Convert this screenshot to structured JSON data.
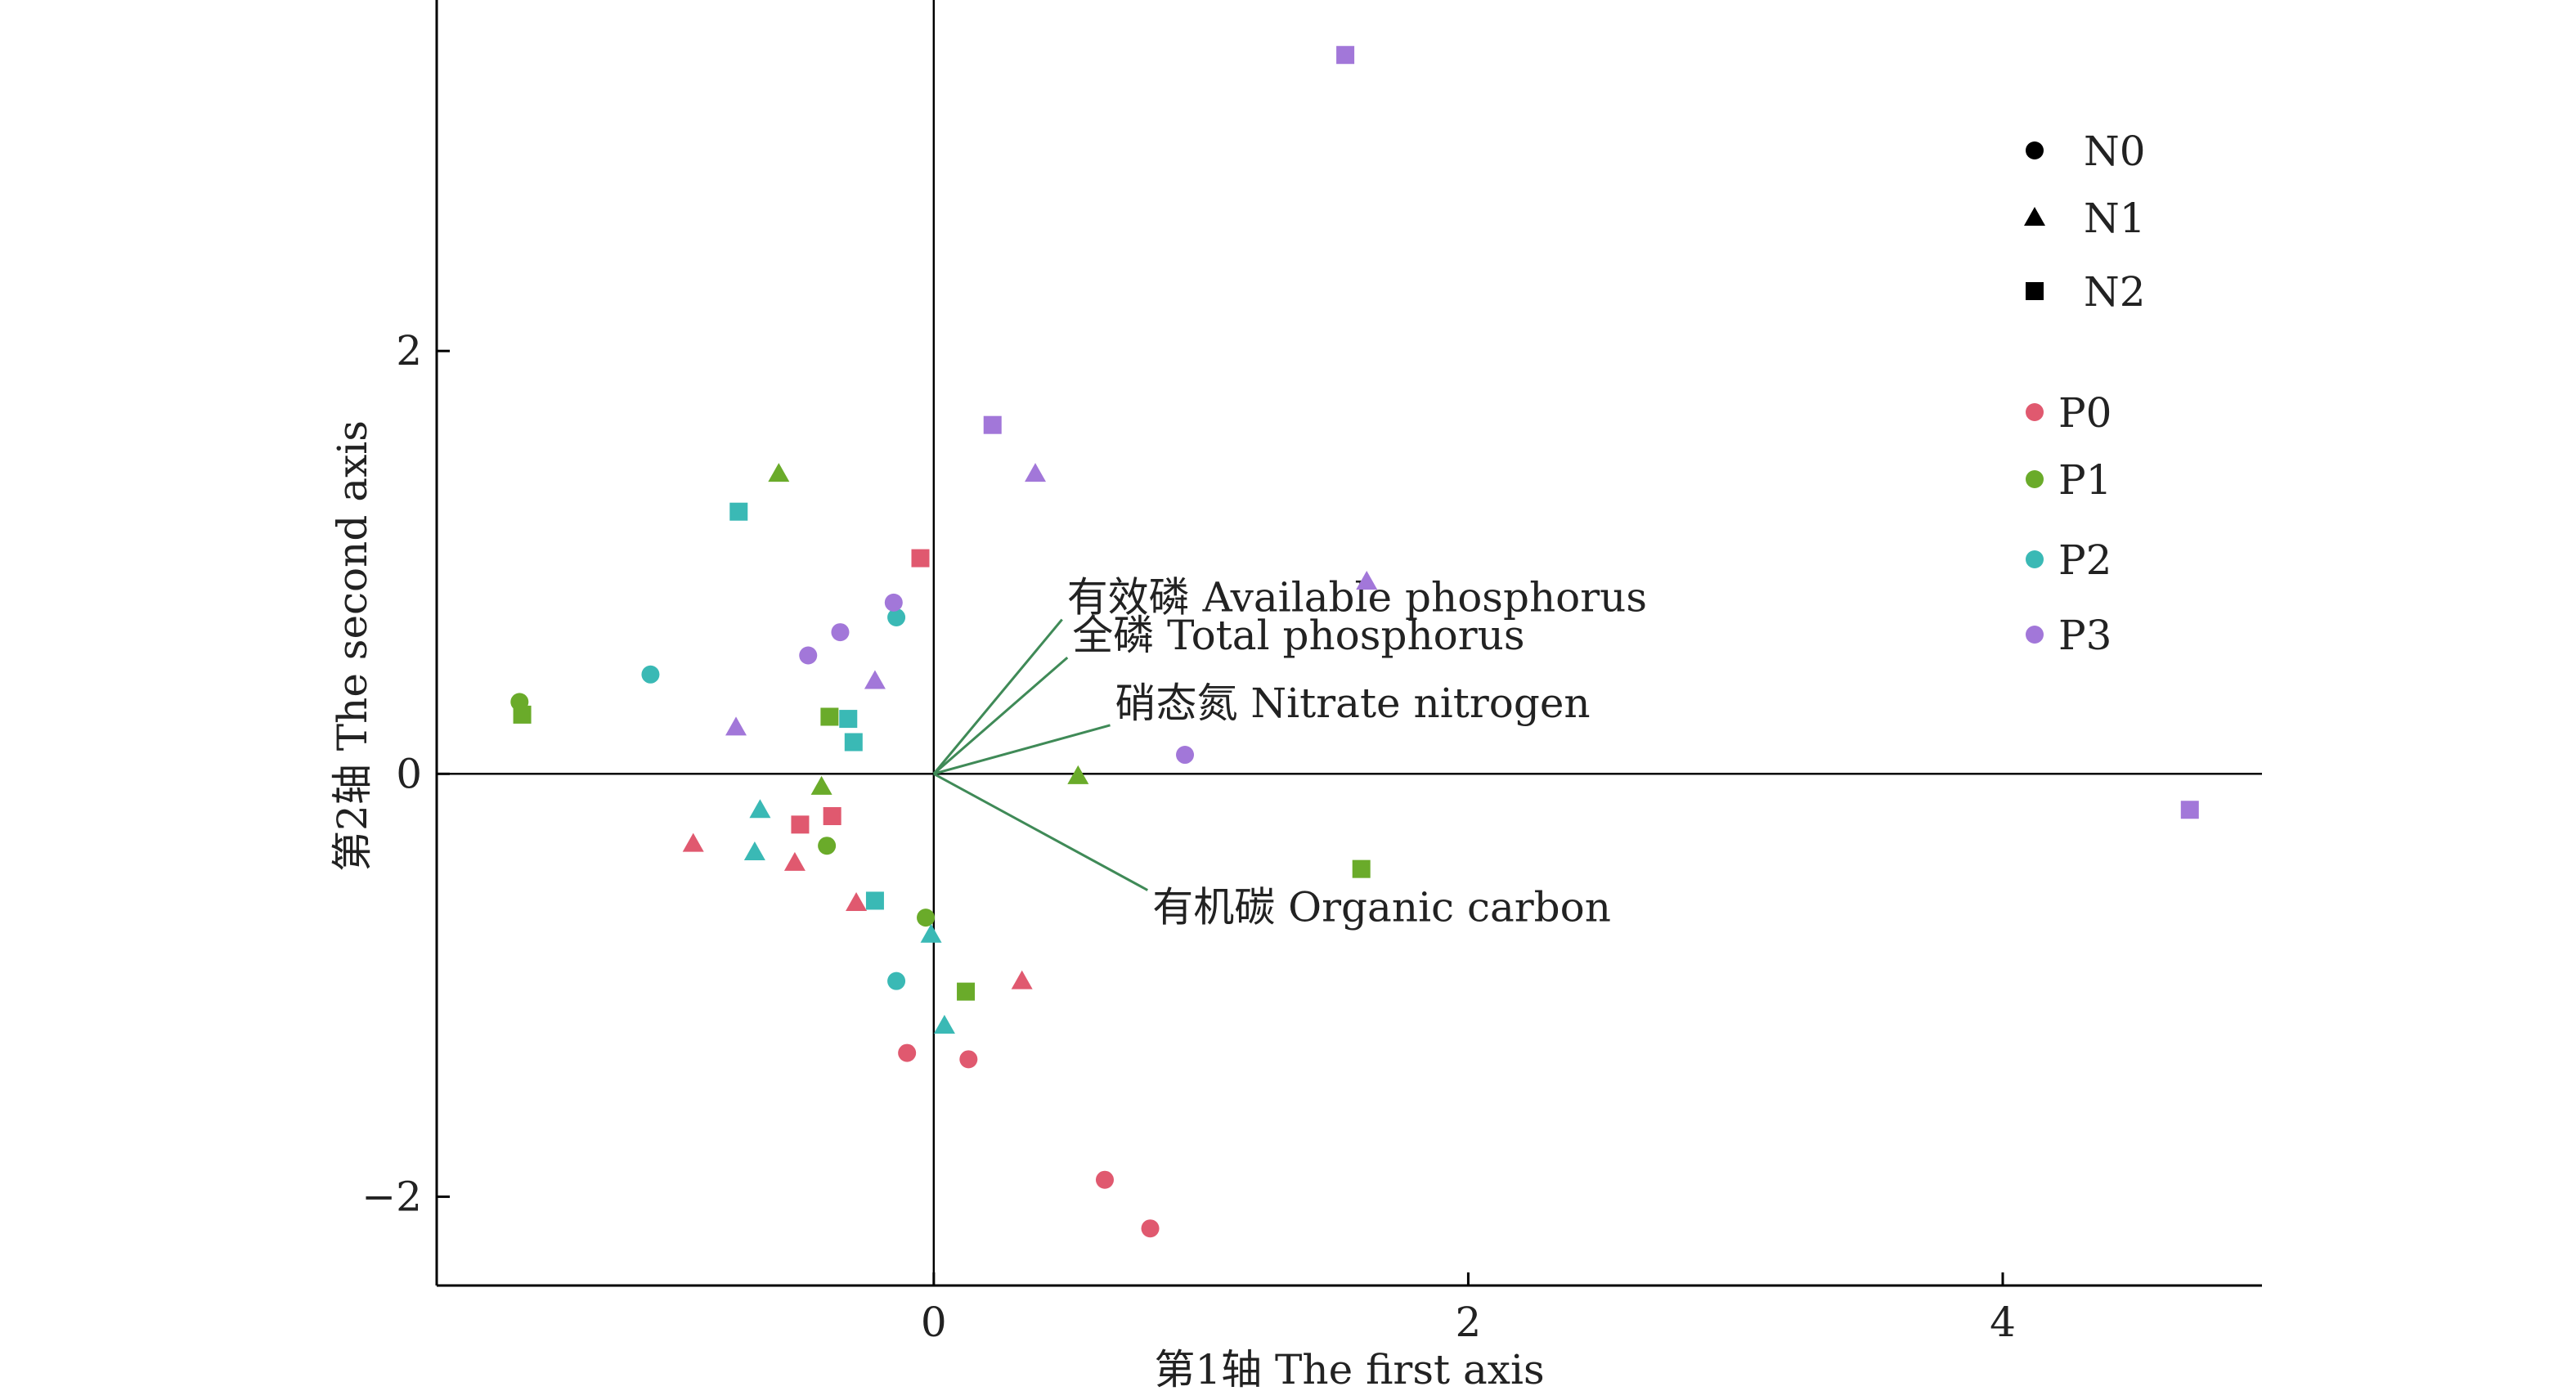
{
  "chart_data": {
    "type": "scatter",
    "xlabel": "第1轴 The first axis",
    "ylabel": "第2轴 The second axis",
    "xlim": [
      -1.86,
      4.97
    ],
    "ylim": [
      -2.42,
      3.66
    ],
    "xticks": [
      0,
      2,
      4
    ],
    "yticks": [
      -2,
      0,
      2
    ],
    "xtick_labels": [
      "0",
      "2",
      "4"
    ],
    "ytick_labels": [
      "−2",
      "0",
      "2"
    ],
    "grid": false,
    "legend_position": "top-right",
    "shape_legend": [
      {
        "label": "N0",
        "shape": "circle"
      },
      {
        "label": "N1",
        "shape": "triangle"
      },
      {
        "label": "N2",
        "shape": "square"
      }
    ],
    "color_legend": [
      {
        "label": "P0",
        "color": "#e0596f"
      },
      {
        "label": "P1",
        "color": "#6aab2a"
      },
      {
        "label": "P2",
        "color": "#3ab9b5"
      },
      {
        "label": "P3",
        "color": "#a277d9"
      }
    ],
    "vectors": [
      {
        "label": "有效磷  Available phosphorus",
        "x": 0.48,
        "y": 0.73
      },
      {
        "label": "全磷  Total phosphorus",
        "x": 0.5,
        "y": 0.55
      },
      {
        "label": "硝态氮  Nitrate nitrogen",
        "x": 0.66,
        "y": 0.23
      },
      {
        "label": "有机碳  Organic carbon",
        "x": 0.8,
        "y": -0.55
      }
    ],
    "points": [
      {
        "x": -0.1,
        "y": -1.32,
        "n": "N0",
        "p": "P0"
      },
      {
        "x": 0.13,
        "y": -1.35,
        "n": "N0",
        "p": "P0"
      },
      {
        "x": 0.64,
        "y": -1.92,
        "n": "N0",
        "p": "P0"
      },
      {
        "x": 0.81,
        "y": -2.15,
        "n": "N0",
        "p": "P0"
      },
      {
        "x": -0.9,
        "y": -0.33,
        "n": "N1",
        "p": "P0"
      },
      {
        "x": -0.52,
        "y": -0.42,
        "n": "N1",
        "p": "P0"
      },
      {
        "x": -0.29,
        "y": -0.61,
        "n": "N1",
        "p": "P0"
      },
      {
        "x": 0.33,
        "y": -0.98,
        "n": "N1",
        "p": "P0"
      },
      {
        "x": -0.05,
        "y": 1.02,
        "n": "N2",
        "p": "P0"
      },
      {
        "x": -0.5,
        "y": -0.24,
        "n": "N2",
        "p": "P0"
      },
      {
        "x": -0.38,
        "y": -0.2,
        "n": "N2",
        "p": "P0"
      },
      {
        "x": -1.55,
        "y": 0.34,
        "n": "N0",
        "p": "P1"
      },
      {
        "x": -0.4,
        "y": -0.34,
        "n": "N0",
        "p": "P1"
      },
      {
        "x": -0.03,
        "y": -0.68,
        "n": "N0",
        "p": "P1"
      },
      {
        "x": -0.58,
        "y": 1.42,
        "n": "N1",
        "p": "P1"
      },
      {
        "x": -0.42,
        "y": -0.06,
        "n": "N1",
        "p": "P1"
      },
      {
        "x": 0.54,
        "y": -0.01,
        "n": "N1",
        "p": "P1"
      },
      {
        "x": -1.54,
        "y": 0.28,
        "n": "N2",
        "p": "P1"
      },
      {
        "x": -0.39,
        "y": 0.27,
        "n": "N2",
        "p": "P1"
      },
      {
        "x": 0.12,
        "y": -1.03,
        "n": "N2",
        "p": "P1"
      },
      {
        "x": 1.6,
        "y": -0.45,
        "n": "N2",
        "p": "P1"
      },
      {
        "x": -1.06,
        "y": 0.47,
        "n": "N0",
        "p": "P2"
      },
      {
        "x": -0.14,
        "y": 0.74,
        "n": "N0",
        "p": "P2"
      },
      {
        "x": -0.14,
        "y": -0.98,
        "n": "N0",
        "p": "P2"
      },
      {
        "x": -0.65,
        "y": -0.17,
        "n": "N1",
        "p": "P2"
      },
      {
        "x": -0.67,
        "y": -0.37,
        "n": "N1",
        "p": "P2"
      },
      {
        "x": -0.01,
        "y": -0.76,
        "n": "N1",
        "p": "P2"
      },
      {
        "x": 0.04,
        "y": -1.19,
        "n": "N1",
        "p": "P2"
      },
      {
        "x": -0.73,
        "y": 1.24,
        "n": "N2",
        "p": "P2"
      },
      {
        "x": -0.32,
        "y": 0.26,
        "n": "N2",
        "p": "P2"
      },
      {
        "x": -0.3,
        "y": 0.15,
        "n": "N2",
        "p": "P2"
      },
      {
        "x": -0.22,
        "y": -0.6,
        "n": "N2",
        "p": "P2"
      },
      {
        "x": -0.15,
        "y": 0.81,
        "n": "N0",
        "p": "P3"
      },
      {
        "x": -0.35,
        "y": 0.67,
        "n": "N0",
        "p": "P3"
      },
      {
        "x": -0.47,
        "y": 0.56,
        "n": "N0",
        "p": "P3"
      },
      {
        "x": 0.94,
        "y": 0.09,
        "n": "N0",
        "p": "P3"
      },
      {
        "x": 0.38,
        "y": 1.42,
        "n": "N1",
        "p": "P3"
      },
      {
        "x": -0.22,
        "y": 0.44,
        "n": "N1",
        "p": "P3"
      },
      {
        "x": -0.74,
        "y": 0.22,
        "n": "N1",
        "p": "P3"
      },
      {
        "x": 1.62,
        "y": 0.91,
        "n": "N1",
        "p": "P3"
      },
      {
        "x": 1.54,
        "y": 3.4,
        "n": "N2",
        "p": "P3"
      },
      {
        "x": 0.22,
        "y": 1.65,
        "n": "N2",
        "p": "P3"
      },
      {
        "x": 4.7,
        "y": -0.17,
        "n": "N2",
        "p": "P3"
      }
    ]
  }
}
